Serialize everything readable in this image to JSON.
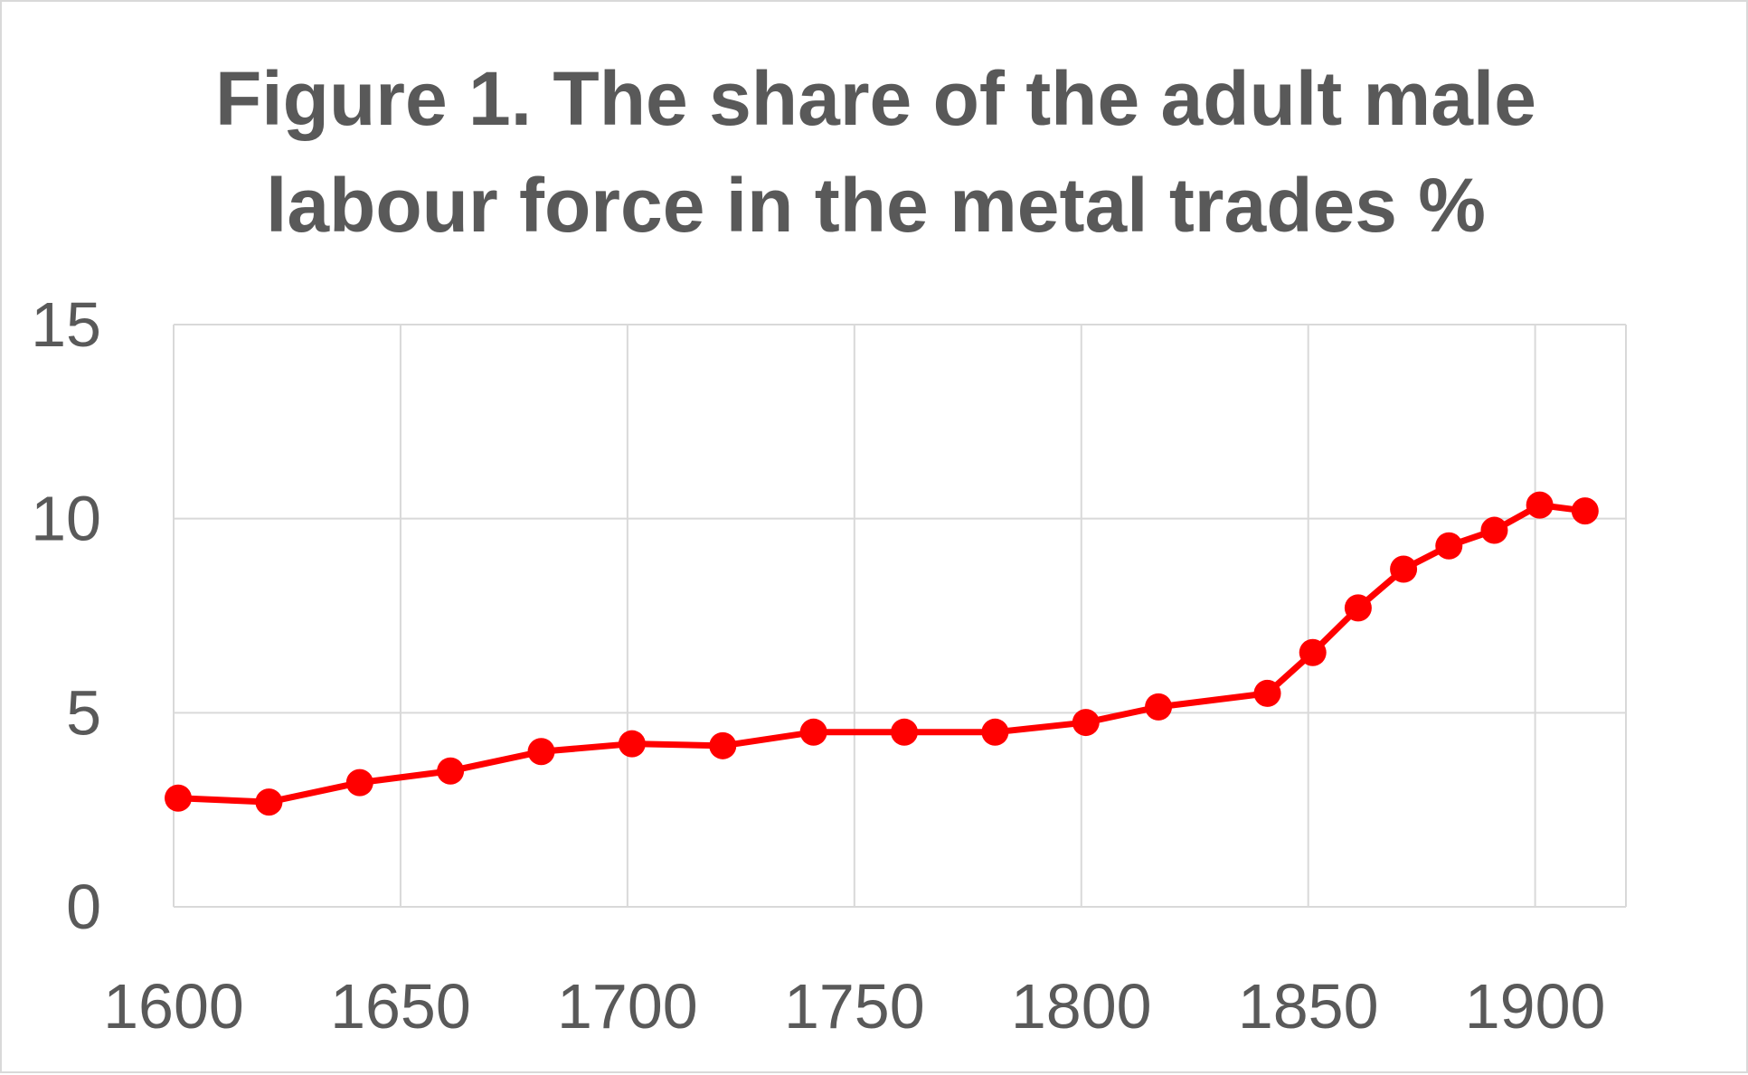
{
  "chart_data": {
    "type": "line",
    "title": "Figure 1. The share of the adult male labour force in the metal trades %",
    "title_lines": [
      "Figure 1. The share of the adult male",
      "labour force in the metal trades %"
    ],
    "xlabel": "",
    "ylabel": "",
    "xlim": [
      1600,
      1920
    ],
    "ylim": [
      0,
      15
    ],
    "x_ticks": [
      1600,
      1650,
      1700,
      1750,
      1800,
      1850,
      1900
    ],
    "y_ticks": [
      0,
      5,
      10,
      15
    ],
    "grid": true,
    "legend": "none",
    "series": [
      {
        "color": "#ff0000",
        "points": [
          {
            "x": 1601,
            "y": 2.8
          },
          {
            "x": 1621,
            "y": 2.7
          },
          {
            "x": 1641,
            "y": 3.2
          },
          {
            "x": 1661,
            "y": 3.5
          },
          {
            "x": 1681,
            "y": 4.0
          },
          {
            "x": 1701,
            "y": 4.2
          },
          {
            "x": 1721,
            "y": 4.15
          },
          {
            "x": 1741,
            "y": 4.5
          },
          {
            "x": 1761,
            "y": 4.5
          },
          {
            "x": 1781,
            "y": 4.5
          },
          {
            "x": 1801,
            "y": 4.75
          },
          {
            "x": 1817,
            "y": 5.15
          },
          {
            "x": 1841,
            "y": 5.5
          },
          {
            "x": 1851,
            "y": 6.55
          },
          {
            "x": 1861,
            "y": 7.7
          },
          {
            "x": 1871,
            "y": 8.7
          },
          {
            "x": 1881,
            "y": 9.3
          },
          {
            "x": 1891,
            "y": 9.7
          },
          {
            "x": 1901,
            "y": 10.35
          },
          {
            "x": 1911,
            "y": 10.2
          }
        ]
      }
    ]
  },
  "colors": {
    "line": "#ff0000",
    "grid": "#d9d9d9",
    "text": "#595959",
    "border": "#d9d9d9"
  }
}
